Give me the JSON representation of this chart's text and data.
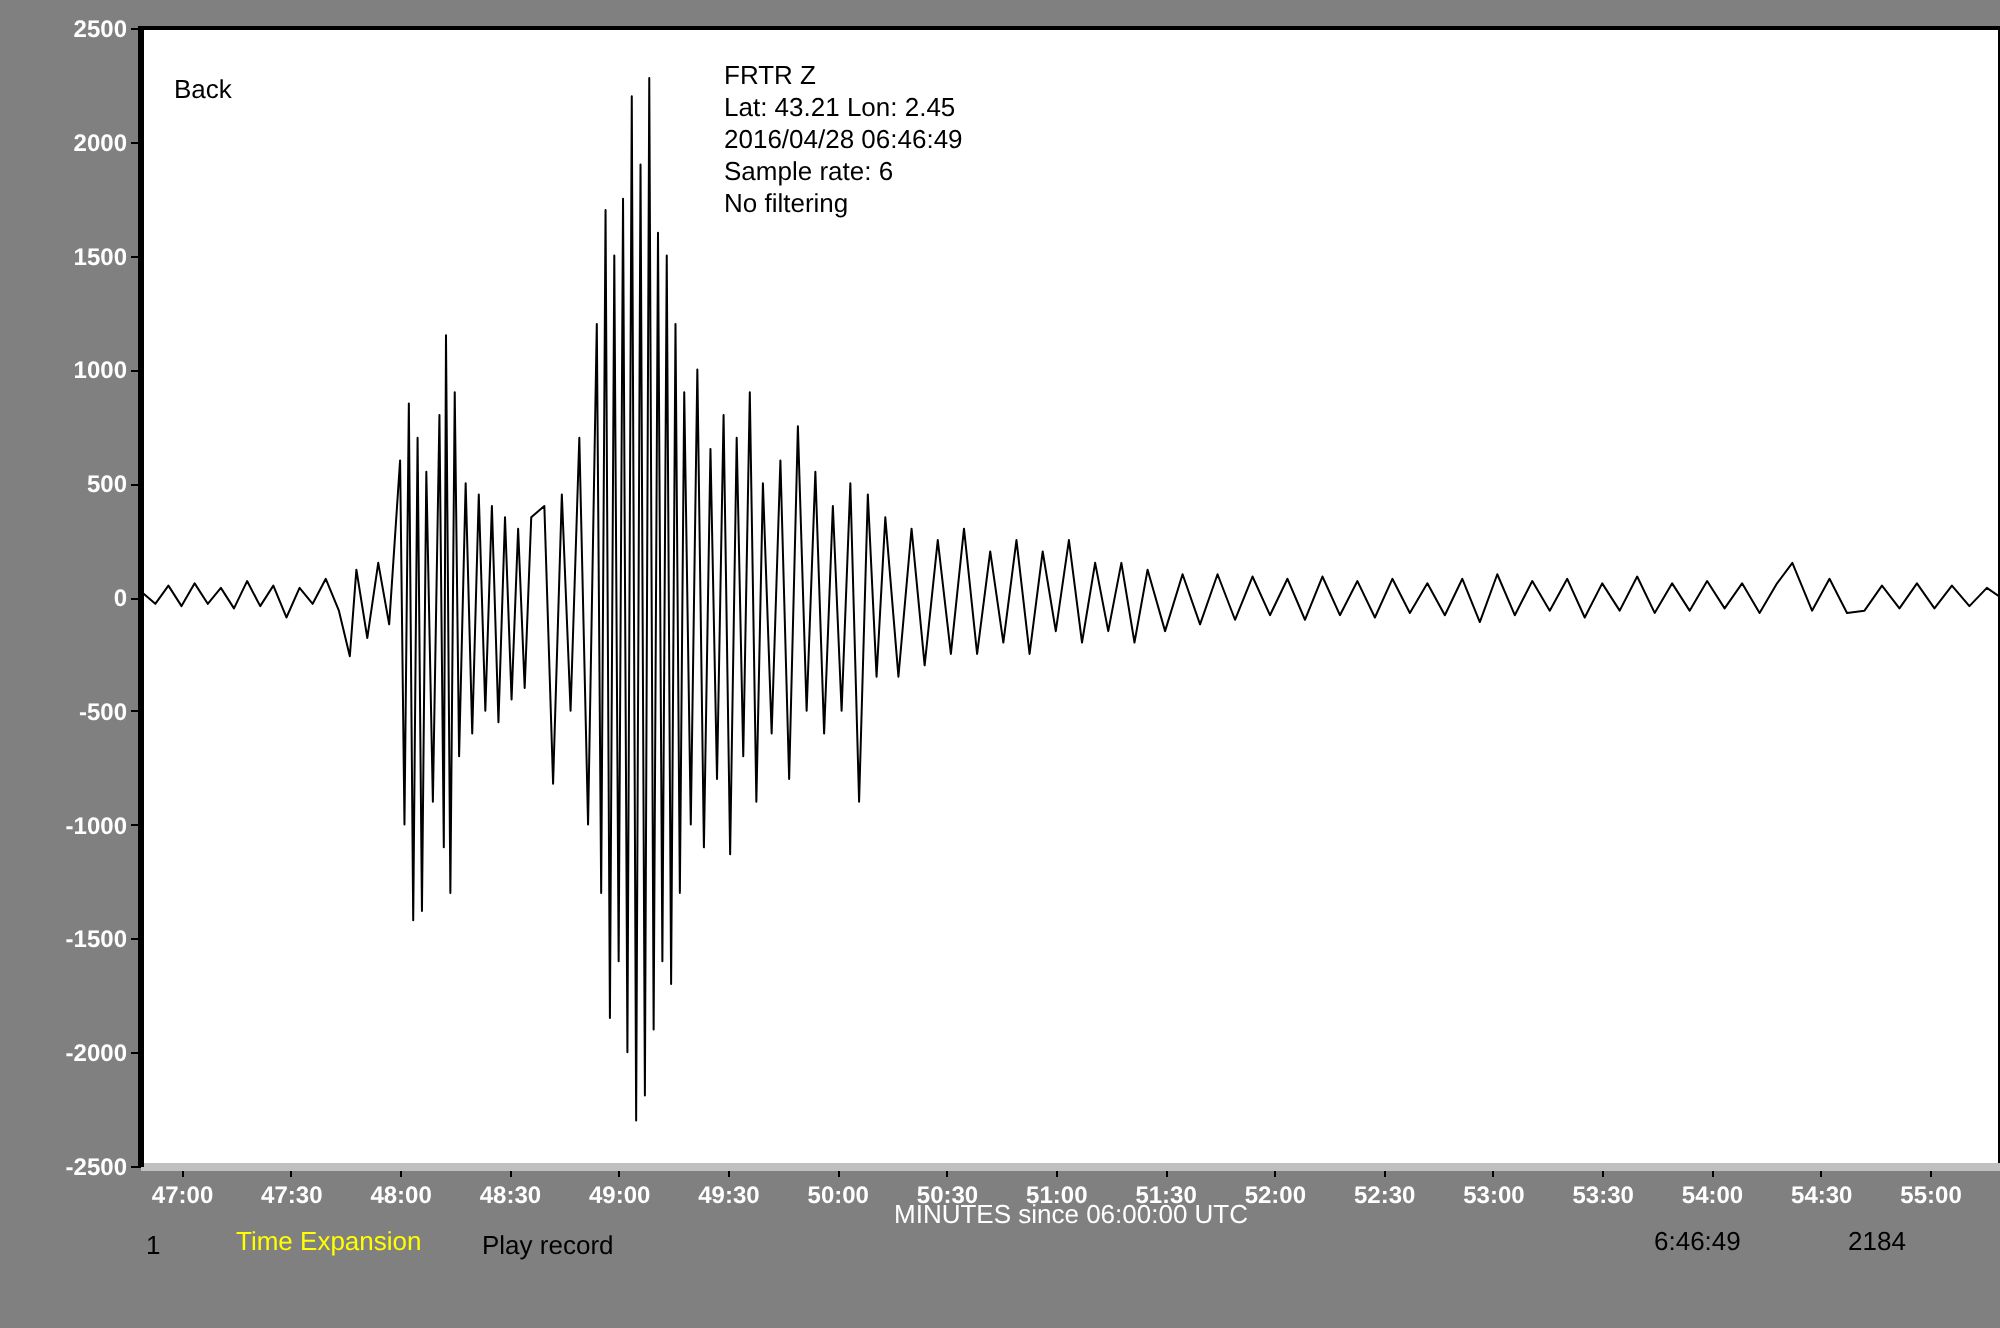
{
  "chart_data": {
    "type": "line",
    "xlabel": "MINUTES since 06:00:00 UTC",
    "annotations": [
      "FRTR  Z",
      "Lat: 43.21 Lon: 2.45",
      "2016/04/28 06:46:49",
      "Sample rate: 6",
      "No filtering",
      "Back",
      "1",
      "Time Expansion",
      "Play record",
      "6:46:49",
      "2184"
    ],
    "xlim": [
      46.81,
      55.32
    ],
    "ylim": [
      -2500,
      2500
    ],
    "xticks": [
      {
        "value": 47,
        "label": "47:00"
      },
      {
        "value": 47.5,
        "label": "47:30"
      },
      {
        "value": 48,
        "label": "48:00"
      },
      {
        "value": 48.5,
        "label": "48:30"
      },
      {
        "value": 49,
        "label": "49:00"
      },
      {
        "value": 49.5,
        "label": "49:30"
      },
      {
        "value": 50,
        "label": "50:00"
      },
      {
        "value": 50.5,
        "label": "50:30"
      },
      {
        "value": 51,
        "label": "51:00"
      },
      {
        "value": 51.5,
        "label": "51:30"
      },
      {
        "value": 52,
        "label": "52:00"
      },
      {
        "value": 52.5,
        "label": "52:30"
      },
      {
        "value": 53,
        "label": "53:00"
      },
      {
        "value": 53.5,
        "label": "53:30"
      },
      {
        "value": 54,
        "label": "54:00"
      },
      {
        "value": 54.5,
        "label": "54:30"
      },
      {
        "value": 55,
        "label": "55:00"
      }
    ],
    "yticks": [
      -2500,
      -2000,
      -1500,
      -1000,
      -500,
      0,
      500,
      1000,
      1500,
      2000,
      2500
    ],
    "grid": false,
    "marker": "none",
    "line_style": "solid",
    "x": [
      46.82,
      46.88,
      46.94,
      47.0,
      47.06,
      47.12,
      47.18,
      47.24,
      47.3,
      47.36,
      47.42,
      47.48,
      47.54,
      47.6,
      47.66,
      47.72,
      47.77,
      47.8,
      47.85,
      47.9,
      47.95,
      48.0,
      48.02,
      48.04,
      48.06,
      48.08,
      48.1,
      48.12,
      48.15,
      48.18,
      48.2,
      48.21,
      48.23,
      48.25,
      48.27,
      48.3,
      48.33,
      48.36,
      48.39,
      48.42,
      48.45,
      48.48,
      48.51,
      48.54,
      48.57,
      48.6,
      48.66,
      48.7,
      48.74,
      48.78,
      48.82,
      48.86,
      48.9,
      48.92,
      48.94,
      48.96,
      48.98,
      49.0,
      49.02,
      49.04,
      49.06,
      49.08,
      49.1,
      49.12,
      49.14,
      49.16,
      49.18,
      49.2,
      49.22,
      49.24,
      49.26,
      49.28,
      49.3,
      49.33,
      49.36,
      49.39,
      49.42,
      49.45,
      49.48,
      49.51,
      49.54,
      49.57,
      49.6,
      49.63,
      49.66,
      49.7,
      49.74,
      49.78,
      49.82,
      49.86,
      49.9,
      49.94,
      49.98,
      50.02,
      50.06,
      50.1,
      50.14,
      50.18,
      50.22,
      50.28,
      50.34,
      50.4,
      50.46,
      50.52,
      50.58,
      50.64,
      50.7,
      50.76,
      50.82,
      50.88,
      50.94,
      51.0,
      51.06,
      51.12,
      51.18,
      51.24,
      51.3,
      51.36,
      51.42,
      51.5,
      51.58,
      51.66,
      51.74,
      51.82,
      51.9,
      51.98,
      52.06,
      52.14,
      52.22,
      52.3,
      52.38,
      52.46,
      52.54,
      52.62,
      52.7,
      52.78,
      52.86,
      52.94,
      53.02,
      53.1,
      53.18,
      53.26,
      53.34,
      53.42,
      53.5,
      53.58,
      53.66,
      53.74,
      53.82,
      53.9,
      53.98,
      54.06,
      54.14,
      54.22,
      54.3,
      54.37,
      54.46,
      54.54,
      54.62,
      54.7,
      54.78,
      54.86,
      54.94,
      55.02,
      55.1,
      55.18,
      55.26,
      55.32
    ],
    "series": [
      {
        "color": "#000000",
        "values": [
          20,
          -30,
          50,
          -40,
          60,
          -30,
          40,
          -50,
          70,
          -40,
          50,
          -90,
          40,
          -30,
          80,
          -60,
          -260,
          120,
          -180,
          150,
          -120,
          600,
          -1000,
          850,
          -1420,
          700,
          -1380,
          550,
          -900,
          800,
          -1100,
          1150,
          -1300,
          900,
          -700,
          500,
          -600,
          450,
          -500,
          400,
          -550,
          350,
          -450,
          300,
          -400,
          350,
          400,
          -820,
          450,
          -500,
          700,
          -1000,
          1200,
          -1300,
          1700,
          -1850,
          1500,
          -1600,
          1750,
          -2000,
          2200,
          -2300,
          1900,
          -2190,
          2280,
          -1900,
          1600,
          -1600,
          1500,
          -1700,
          1200,
          -1300,
          900,
          -1000,
          1000,
          -1100,
          650,
          -800,
          800,
          -1130,
          700,
          -700,
          900,
          -900,
          500,
          -600,
          600,
          -800,
          750,
          -500,
          550,
          -600,
          400,
          -500,
          500,
          -900,
          450,
          -350,
          350,
          -350,
          300,
          -300,
          250,
          -250,
          300,
          -250,
          200,
          -200,
          250,
          -250,
          200,
          -150,
          250,
          -200,
          150,
          -150,
          150,
          -200,
          120,
          -150,
          100,
          -120,
          100,
          -100,
          90,
          -80,
          80,
          -100,
          90,
          -80,
          70,
          -90,
          80,
          -70,
          60,
          -80,
          80,
          -110,
          100,
          -80,
          70,
          -60,
          80,
          -90,
          60,
          -60,
          90,
          -70,
          60,
          -60,
          70,
          -50,
          60,
          -70,
          60,
          150,
          -60,
          80,
          -70,
          -60,
          50,
          -50,
          60,
          -50,
          50,
          -40,
          40,
          0
        ]
      }
    ]
  }
}
